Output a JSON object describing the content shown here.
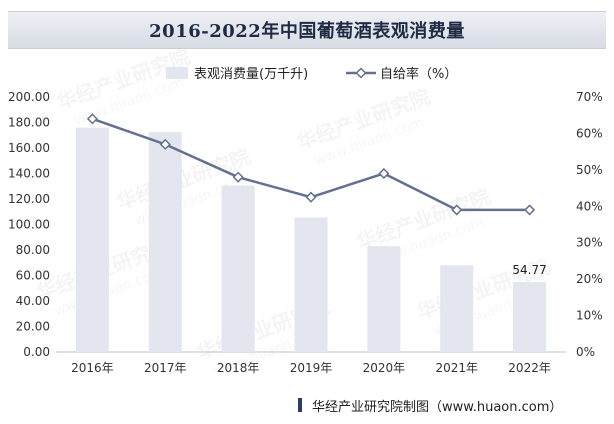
{
  "chart_data": {
    "type": "bar+line",
    "title": "2016-2022年中国葡萄酒表观消费量",
    "categories": [
      "2016年",
      "2017年",
      "2018年",
      "2019年",
      "2020年",
      "2021年",
      "2022年"
    ],
    "series": [
      {
        "name": "表观消费量(万千升)",
        "type": "bar",
        "axis": "left",
        "values": [
          176.0,
          172.5,
          130.5,
          105.5,
          83.0,
          68.0,
          54.77
        ]
      },
      {
        "name": "自给率（%）",
        "type": "line",
        "axis": "right",
        "values": [
          64.0,
          57.0,
          48.0,
          42.5,
          49.0,
          39.0,
          39.0
        ]
      }
    ],
    "data_labels": [
      {
        "category": "2022年",
        "series": "表观消费量(万千升)",
        "text": "54.77"
      }
    ],
    "y_left": {
      "min": 0,
      "max": 200,
      "step": 20,
      "ticks": [
        "0.00",
        "20.00",
        "40.00",
        "60.00",
        "80.00",
        "100.00",
        "120.00",
        "140.00",
        "160.00",
        "180.00",
        "200.00"
      ]
    },
    "y_right": {
      "min": 0,
      "max": 70,
      "step": 10,
      "ticks": [
        "0%",
        "10%",
        "20%",
        "30%",
        "40%",
        "50%",
        "60%",
        "70%"
      ]
    },
    "legend_position": "top-center",
    "grid": false,
    "colors": {
      "bar": "#e3e6ee",
      "line": "#63708f",
      "marker_fill": "#ffffff",
      "axis_text": "#333333"
    }
  },
  "watermark": {
    "text": "华经产业研究院",
    "url": "www.huaon.com"
  },
  "footer": {
    "text": "华经产业研究院制图（www.huaon.com）"
  }
}
